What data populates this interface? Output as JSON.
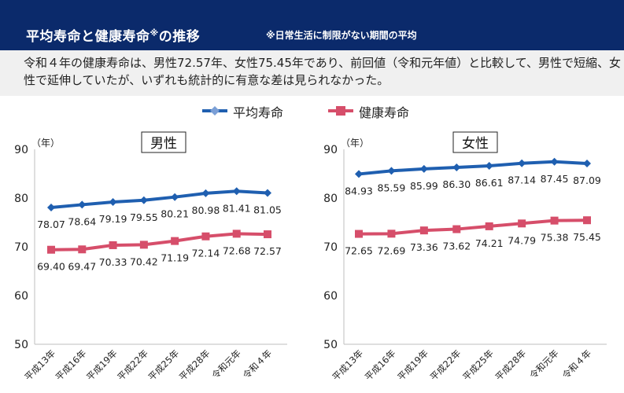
{
  "header": {
    "title": "平均寿命と健康寿命",
    "title_mark": "※",
    "title_suffix": "の推移",
    "note": "※日常生活に制限がない期間の平均"
  },
  "summary": "令和４年の健康寿命は、男性72.57年、女性75.45年であり、前回値（令和元年値）と比較して、男性で短縮、女性で延伸していたが、いずれも統計的に有意な差は見られなかった。",
  "legend": {
    "series1": "平均寿命",
    "series2": "健康寿命"
  },
  "colors": {
    "header_bg": "#0b2a6b",
    "series1": "#1f5fb0",
    "series2": "#d64e6a"
  },
  "chart_data": [
    {
      "type": "line",
      "title": "男性",
      "ylabel": "（年）",
      "ylim": [
        50,
        90
      ],
      "yticks": [
        50,
        60,
        70,
        80,
        90
      ],
      "categories": [
        "平成13年",
        "平成16年",
        "平成19年",
        "平成22年",
        "平成25年",
        "平成28年",
        "令和元年",
        "令和４年"
      ],
      "series": [
        {
          "name": "平均寿命",
          "values": [
            78.07,
            78.64,
            79.19,
            79.55,
            80.21,
            80.98,
            81.41,
            81.05
          ]
        },
        {
          "name": "健康寿命",
          "values": [
            69.4,
            69.47,
            70.33,
            70.42,
            71.19,
            72.14,
            72.68,
            72.57
          ]
        }
      ]
    },
    {
      "type": "line",
      "title": "女性",
      "ylabel": "（年）",
      "ylim": [
        50,
        90
      ],
      "yticks": [
        50,
        60,
        70,
        80,
        90
      ],
      "categories": [
        "平成13年",
        "平成16年",
        "平成19年",
        "平成22年",
        "平成25年",
        "平成28年",
        "令和元年",
        "令和４年"
      ],
      "series": [
        {
          "name": "平均寿命",
          "values": [
            84.93,
            85.59,
            85.99,
            86.3,
            86.61,
            87.14,
            87.45,
            87.09
          ]
        },
        {
          "name": "健康寿命",
          "values": [
            72.65,
            72.69,
            73.36,
            73.62,
            74.21,
            74.79,
            75.38,
            75.45
          ]
        }
      ]
    }
  ]
}
